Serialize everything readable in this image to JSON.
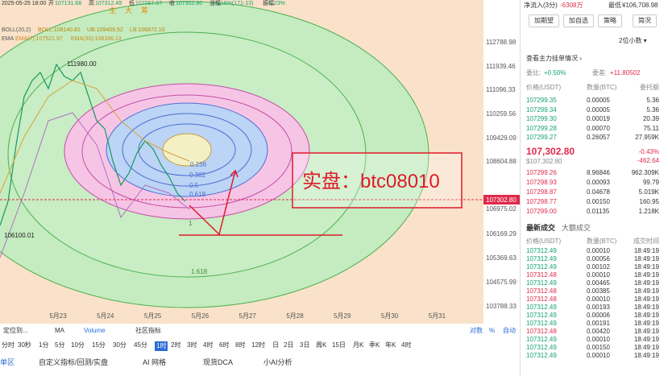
{
  "info_bar": {
    "datetime": "2025-05-25 18:00",
    "items": [
      [
        "开",
        "107131.68"
      ],
      [
        "高",
        "107312.49"
      ],
      [
        "低",
        "107067.07"
      ],
      [
        "收",
        "107302.80"
      ],
      [
        "涨幅",
        "0.16%(171-13)"
      ],
      [
        "振幅",
        "0.23%"
      ]
    ]
  },
  "toolbar_chars": [
    "主",
    "大",
    "筹"
  ],
  "indicators": {
    "boll": [
      "BOLL(20,2)",
      "BOLL:108140.81",
      "UB:109409.52",
      "LB:106872.10"
    ],
    "ema": [
      "EMA",
      "EMA(7):107521.97",
      "EMA(30):108166.13"
    ]
  },
  "price_axis": [
    "112788.98",
    "111939.46",
    "111096.33",
    "110259.56",
    "109429.09",
    "108604.88",
    "106975.02",
    "106169.29",
    "105369.63",
    "104575.99",
    "103788.33"
  ],
  "current_price_tag": "107302.80",
  "date_axis": [
    "5月23",
    "5月24",
    "5月25",
    "5月26",
    "5月27",
    "5月28",
    "5月29",
    "5月30",
    "5月31"
  ],
  "annotations": {
    "high": "111980.00",
    "low": "106100.01"
  },
  "fib_levels": [
    "0.236",
    "0.382",
    "0.5",
    "0.618",
    "1",
    "1.618"
  ],
  "overlay_text": "实盘：btc08010",
  "bottom_toolbar": {
    "left": [
      "定位到...",
      "MA",
      "Volume",
      "社区指标"
    ],
    "right": [
      "对数",
      "%",
      "自动"
    ]
  },
  "timeframes": [
    "分时",
    "30秒",
    "1分",
    "5分",
    "10分",
    "15分",
    "30分",
    "45分",
    "1时",
    "2时",
    "3时",
    "4时",
    "6时",
    "8时",
    "12时",
    "日",
    "2日",
    "3日",
    "周K",
    "15日",
    "月K",
    "季K",
    "年K",
    "4时"
  ],
  "active_timeframe": "1时",
  "bottom_tabs": [
    "单区",
    "自定义指标/回测/实盘",
    "AI 网格",
    "现货DCA",
    "小AI分析"
  ],
  "panel": {
    "net_inflow_label": "净流入(3分)",
    "net_inflow": "-6308万",
    "low_label": "最低",
    "low": "¥106,708.98",
    "buttons": [
      "加期望",
      "加自选",
      "策略",
      "简况"
    ],
    "decimals": "2位小数 ▾",
    "main_orders": "查看主力挂单情况 ›",
    "ratio_label": "委比:",
    "ratio": "+0.50%",
    "diff_label": "委差:",
    "diff": "+11.80502",
    "book_header": [
      "价格(USDT)",
      "数量(BTC)",
      "委托额"
    ],
    "asks": [
      [
        "107299.35",
        "0.00005",
        "5.36"
      ],
      [
        "107299.34",
        "0.00005",
        "5.36"
      ],
      [
        "107299.30",
        "0.00019",
        "20.39"
      ],
      [
        "107299.28",
        "0.00070",
        "75.11"
      ],
      [
        "107299.27",
        "0.26057",
        "27.959K"
      ]
    ],
    "mid_price": "107,302.80",
    "mid_change": "-0.43%",
    "mid_usd": "$107,302.80",
    "mid_diff": "-462.64",
    "bids": [
      [
        "107299.26",
        "8.96846",
        "962.309K"
      ],
      [
        "107298.93",
        "0.00093",
        "99.79"
      ],
      [
        "107298.87",
        "0.04678",
        "5.019K"
      ],
      [
        "107298.77",
        "0.00150",
        "160.95"
      ],
      [
        "107299.00",
        "0.01135",
        "1.218K"
      ]
    ],
    "trade_tabs": [
      "最新成交",
      "大额成交"
    ],
    "trade_header": [
      "价格(USDT)",
      "数量(BTC)",
      "成交时间"
    ],
    "trades": [
      [
        "107312.49",
        "0.00010",
        "18:49:19"
      ],
      [
        "107312.49",
        "0.00056",
        "18:49:19"
      ],
      [
        "107312.49",
        "0.00102",
        "18:49:19"
      ],
      [
        "107312.48",
        "0.00010",
        "18:49:19"
      ],
      [
        "107312.49",
        "0.00465",
        "18:49:19"
      ],
      [
        "107312.48",
        "0.00385",
        "18:49:19"
      ],
      [
        "107312.48",
        "0.00010",
        "18:49:19"
      ],
      [
        "107312.49",
        "0.00193",
        "18:49:19"
      ],
      [
        "107312.49",
        "0.00006",
        "18:49:19"
      ],
      [
        "107312.49",
        "0.00191",
        "18:49:19"
      ],
      [
        "107312.48",
        "0.00420",
        "18:49:19"
      ],
      [
        "107312.49",
        "0.00010",
        "18:49:19"
      ],
      [
        "107312.49",
        "0.00150",
        "18:49:19"
      ],
      [
        "107312.49",
        "0.00010",
        "18:49:19"
      ]
    ]
  }
}
